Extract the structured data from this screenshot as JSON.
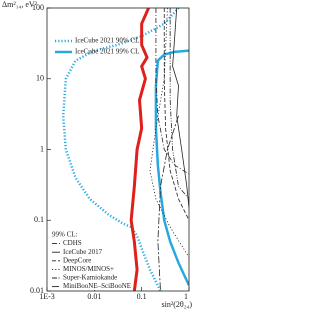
{
  "chart_data": {
    "type": "line",
    "y_label": "Δm²₁₄, eV²",
    "x_label": "sin²(2θ₂₄)",
    "xlog": true,
    "ylog": true,
    "xlim": [
      0.001,
      1
    ],
    "ylim": [
      0.01,
      100
    ],
    "xticks": [
      {
        "value": 0.001,
        "label": "1E-3"
      },
      0.01,
      0.1,
      1
    ],
    "yticks": [
      0.01,
      0.1,
      1,
      10,
      100
    ],
    "legend_title": "99% CL:",
    "series": [
      {
        "name": "IceCube 2021 90% CL",
        "color": "#29a8e0",
        "dash": "dotted",
        "width": 2.5,
        "x": [
          0.6,
          0.3,
          0.1,
          0.03,
          0.01,
          0.004,
          0.0025,
          0.0022,
          0.0025,
          0.004,
          0.008,
          0.02,
          0.04,
          0.06,
          0.08,
          0.1,
          0.15,
          0.25
        ],
        "values": [
          100,
          60,
          40,
          30,
          25,
          18,
          10,
          3,
          1,
          0.4,
          0.2,
          0.12,
          0.09,
          0.08,
          0.06,
          0.04,
          0.02,
          0.01
        ]
      },
      {
        "name": "IceCube 2021 99% CL",
        "color": "#29a8e0",
        "dash": "solid",
        "width": 2.5,
        "x": [
          1,
          0.5,
          0.3,
          0.22,
          0.2,
          0.2,
          0.22,
          0.25,
          0.3,
          0.4,
          0.6,
          1
        ],
        "values": [
          25,
          24,
          22,
          18,
          8,
          2,
          0.6,
          0.25,
          0.1,
          0.05,
          0.025,
          0.012
        ]
      },
      {
        "color": "#e0201b",
        "dash": "solid",
        "width": 3,
        "x": [
          0.14,
          0.1,
          0.1,
          0.13,
          0.1,
          0.12,
          0.09,
          0.1,
          0.08,
          0.07,
          0.06,
          0.07,
          0.08,
          0.07
        ],
        "values": [
          100,
          60,
          30,
          20,
          15,
          10,
          5,
          2,
          1,
          0.3,
          0.1,
          0.05,
          0.02,
          0.01
        ]
      },
      {
        "name": "CDHS",
        "color": "#222222",
        "dash": "dashdot",
        "width": 0.8,
        "x": [
          0.2,
          0.2,
          0.22,
          0.3,
          0.5,
          1
        ],
        "values": [
          100,
          10,
          3,
          1,
          0.6,
          0.45
        ]
      },
      {
        "name": "IceCube 2017",
        "color": "#222222",
        "dash": "solid",
        "width": 0.8,
        "x": [
          0.55,
          0.5,
          0.45,
          0.6,
          0.55,
          0.7,
          0.9,
          1
        ],
        "values": [
          100,
          40,
          15,
          8,
          3,
          1,
          0.3,
          0.15
        ]
      },
      {
        "name": "DeepCore",
        "color": "#222222",
        "dash": "dashed",
        "width": 0.8,
        "x": [
          0.3,
          0.3,
          0.32,
          0.4,
          0.6,
          1
        ],
        "values": [
          100,
          10,
          2,
          0.5,
          0.2,
          0.1
        ]
      },
      {
        "name": "MINOS/MINOS+",
        "color": "#222222",
        "dash": "dotted",
        "width": 0.8,
        "x": [
          0.35,
          0.3,
          0.2,
          0.15,
          0.2,
          0.4,
          1
        ],
        "values": [
          100,
          10,
          2,
          0.5,
          0.2,
          0.08,
          0.03
        ]
      },
      {
        "name": "Super-Kamiokande",
        "color": "#222222",
        "dash": "dashdotdot",
        "width": 0.8,
        "x": [
          0.4,
          0.4,
          0.45,
          0.6,
          1
        ],
        "values": [
          100,
          5,
          1,
          0.3,
          0.2
        ]
      },
      {
        "name": "MiniBooNE–SciBooNE",
        "color": "#222222",
        "dash": "longdash",
        "width": 0.8,
        "x": [
          0.6,
          0.35,
          0.25,
          0.22,
          0.25
        ],
        "values": [
          3,
          1,
          0.3,
          0.05,
          0.01
        ]
      }
    ]
  }
}
